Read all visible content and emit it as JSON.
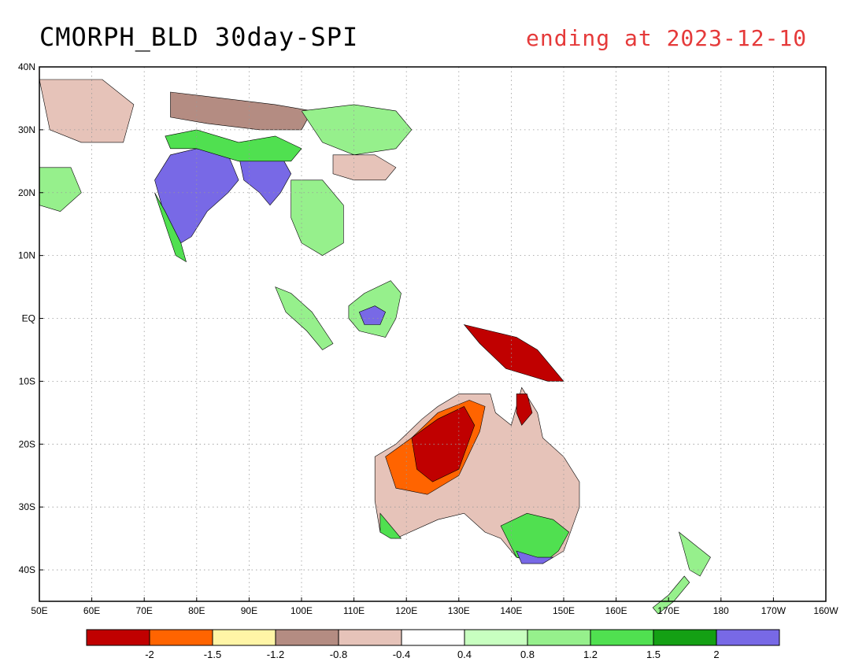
{
  "title": "CMORPH_BLD 30day-SPI",
  "subtitle": "ending at 2023-12-10",
  "map": {
    "lon_range": [
      50,
      200
    ],
    "lat_range": [
      -45,
      40
    ],
    "lon_ticks": [
      {
        "lon": 50,
        "label": "50E"
      },
      {
        "lon": 60,
        "label": "60E"
      },
      {
        "lon": 70,
        "label": "70E"
      },
      {
        "lon": 80,
        "label": "80E"
      },
      {
        "lon": 90,
        "label": "90E"
      },
      {
        "lon": 100,
        "label": "100E"
      },
      {
        "lon": 110,
        "label": "110E"
      },
      {
        "lon": 120,
        "label": "120E"
      },
      {
        "lon": 130,
        "label": "130E"
      },
      {
        "lon": 140,
        "label": "140E"
      },
      {
        "lon": 150,
        "label": "150E"
      },
      {
        "lon": 160,
        "label": "160E"
      },
      {
        "lon": 170,
        "label": "170E"
      },
      {
        "lon": 180,
        "label": "180"
      },
      {
        "lon": 190,
        "label": "170W"
      },
      {
        "lon": 200,
        "label": "160W"
      }
    ],
    "lat_ticks": [
      {
        "lat": 40,
        "label": "40N"
      },
      {
        "lat": 30,
        "label": "30N"
      },
      {
        "lat": 20,
        "label": "20N"
      },
      {
        "lat": 10,
        "label": "10N"
      },
      {
        "lat": 0,
        "label": "EQ"
      },
      {
        "lat": -10,
        "label": "10S"
      },
      {
        "lat": -20,
        "label": "20S"
      },
      {
        "lat": -30,
        "label": "30S"
      },
      {
        "lat": -40,
        "label": "40S"
      }
    ],
    "grid": true
  },
  "colorbar": {
    "colors": [
      "#c00000",
      "#ff6400",
      "#fff5a6",
      "#b48c82",
      "#e6c3b9",
      "#ffffff",
      "#c8ffc0",
      "#96f08c",
      "#50e050",
      "#14a014",
      "#7869e6"
    ],
    "labels": [
      "-2",
      "-1.5",
      "-1.2",
      "-0.8",
      "-0.4",
      "0.4",
      "0.8",
      "1.2",
      "1.5",
      "2"
    ]
  },
  "regions": [
    {
      "name": "india",
      "color": "#7869e6",
      "poly": [
        [
          72,
          22
        ],
        [
          75,
          26
        ],
        [
          80,
          27
        ],
        [
          86,
          26
        ],
        [
          88,
          22
        ],
        [
          86,
          20
        ],
        [
          82,
          17
        ],
        [
          79,
          13
        ],
        [
          77,
          12
        ],
        [
          74,
          16
        ],
        [
          73,
          19
        ]
      ]
    },
    {
      "name": "india-west-green",
      "color": "#50e050",
      "poly": [
        [
          72,
          20
        ],
        [
          74,
          15
        ],
        [
          76,
          10
        ],
        [
          78,
          9
        ],
        [
          77,
          12
        ],
        [
          74,
          17
        ]
      ]
    },
    {
      "name": "bangladesh-burma",
      "color": "#7869e6",
      "poly": [
        [
          88,
          26
        ],
        [
          92,
          27
        ],
        [
          96,
          26
        ],
        [
          98,
          23
        ],
        [
          96,
          20
        ],
        [
          94,
          18
        ],
        [
          92,
          20
        ],
        [
          89,
          22
        ]
      ]
    },
    {
      "name": "himalaya-green",
      "color": "#50e050",
      "poly": [
        [
          74,
          29
        ],
        [
          80,
          30
        ],
        [
          88,
          28
        ],
        [
          95,
          29
        ],
        [
          100,
          27
        ],
        [
          98,
          25
        ],
        [
          88,
          25
        ],
        [
          80,
          27
        ],
        [
          75,
          27
        ]
      ]
    },
    {
      "name": "tibet-brown",
      "color": "#b48c82",
      "poly": [
        [
          75,
          36
        ],
        [
          85,
          35
        ],
        [
          95,
          34
        ],
        [
          102,
          33
        ],
        [
          100,
          30
        ],
        [
          92,
          30
        ],
        [
          82,
          31
        ],
        [
          75,
          32
        ]
      ]
    },
    {
      "name": "china-green",
      "color": "#96f08c",
      "poly": [
        [
          100,
          33
        ],
        [
          110,
          34
        ],
        [
          118,
          33
        ],
        [
          121,
          30
        ],
        [
          118,
          27
        ],
        [
          110,
          26
        ],
        [
          104,
          28
        ]
      ]
    },
    {
      "name": "china-south-brown",
      "color": "#e6c3b9",
      "poly": [
        [
          106,
          26
        ],
        [
          114,
          26
        ],
        [
          118,
          24
        ],
        [
          116,
          22
        ],
        [
          110,
          22
        ],
        [
          106,
          23
        ]
      ]
    },
    {
      "name": "se-asia-green",
      "color": "#96f08c",
      "poly": [
        [
          98,
          22
        ],
        [
          104,
          22
        ],
        [
          108,
          18
        ],
        [
          108,
          12
        ],
        [
          104,
          10
        ],
        [
          100,
          12
        ],
        [
          98,
          16
        ]
      ]
    },
    {
      "name": "arabia-brown",
      "color": "#e6c3b9",
      "poly": [
        [
          50,
          38
        ],
        [
          62,
          38
        ],
        [
          68,
          34
        ],
        [
          66,
          28
        ],
        [
          58,
          28
        ],
        [
          52,
          30
        ]
      ]
    },
    {
      "name": "arabia-green",
      "color": "#96f08c",
      "poly": [
        [
          50,
          24
        ],
        [
          56,
          24
        ],
        [
          58,
          20
        ],
        [
          54,
          17
        ],
        [
          50,
          18
        ]
      ]
    },
    {
      "name": "borneo-green",
      "color": "#96f08c",
      "poly": [
        [
          109,
          2
        ],
        [
          112,
          4
        ],
        [
          117,
          6
        ],
        [
          119,
          4
        ],
        [
          118,
          0
        ],
        [
          116,
          -3
        ],
        [
          111,
          -2
        ],
        [
          109,
          0
        ]
      ]
    },
    {
      "name": "borneo-purple",
      "color": "#7869e6",
      "poly": [
        [
          111,
          1
        ],
        [
          114,
          2
        ],
        [
          116,
          1
        ],
        [
          115,
          -1
        ],
        [
          112,
          -1
        ]
      ]
    },
    {
      "name": "sumatra-green",
      "color": "#96f08c",
      "poly": [
        [
          95,
          5
        ],
        [
          98,
          4
        ],
        [
          102,
          1
        ],
        [
          106,
          -4
        ],
        [
          104,
          -5
        ],
        [
          101,
          -2
        ],
        [
          97,
          1
        ]
      ]
    },
    {
      "name": "new-guinea-red",
      "color": "#c00000",
      "poly": [
        [
          131,
          -1
        ],
        [
          136,
          -2
        ],
        [
          141,
          -3
        ],
        [
          145,
          -5
        ],
        [
          148,
          -8
        ],
        [
          150,
          -10
        ],
        [
          147,
          -10
        ],
        [
          143,
          -9
        ],
        [
          139,
          -8
        ],
        [
          134,
          -4
        ]
      ]
    },
    {
      "name": "australia-base",
      "color": "#e6c3b9",
      "poly": [
        [
          114,
          -22
        ],
        [
          118,
          -20
        ],
        [
          123,
          -16
        ],
        [
          126,
          -14
        ],
        [
          130,
          -12
        ],
        [
          136,
          -12
        ],
        [
          137,
          -15
        ],
        [
          140,
          -17
        ],
        [
          142,
          -11
        ],
        [
          145,
          -15
        ],
        [
          146,
          -19
        ],
        [
          150,
          -22
        ],
        [
          153,
          -26
        ],
        [
          153,
          -30
        ],
        [
          150,
          -37
        ],
        [
          146,
          -39
        ],
        [
          141,
          -38
        ],
        [
          138,
          -35
        ],
        [
          135,
          -34
        ],
        [
          131,
          -31
        ],
        [
          126,
          -32
        ],
        [
          118,
          -35
        ],
        [
          115,
          -34
        ],
        [
          114,
          -29
        ]
      ]
    },
    {
      "name": "australia-north-orange",
      "color": "#ff6400",
      "poly": [
        [
          116,
          -22
        ],
        [
          121,
          -19
        ],
        [
          126,
          -15
        ],
        [
          132,
          -13
        ],
        [
          135,
          -14
        ],
        [
          134,
          -18
        ],
        [
          130,
          -25
        ],
        [
          124,
          -28
        ],
        [
          118,
          -27
        ]
      ]
    },
    {
      "name": "australia-north-red",
      "color": "#c00000",
      "poly": [
        [
          121,
          -19
        ],
        [
          126,
          -16
        ],
        [
          131,
          -14
        ],
        [
          133,
          -17
        ],
        [
          130,
          -24
        ],
        [
          125,
          -26
        ],
        [
          122,
          -24
        ]
      ]
    },
    {
      "name": "cape-york-red",
      "color": "#c00000",
      "poly": [
        [
          141,
          -12
        ],
        [
          143,
          -12
        ],
        [
          144,
          -15
        ],
        [
          142,
          -17
        ],
        [
          141,
          -15
        ]
      ]
    },
    {
      "name": "australia-se-green",
      "color": "#50e050",
      "poly": [
        [
          138,
          -33
        ],
        [
          143,
          -31
        ],
        [
          148,
          -32
        ],
        [
          151,
          -34
        ],
        [
          149,
          -37
        ],
        [
          146,
          -39
        ],
        [
          141,
          -38
        ]
      ]
    },
    {
      "name": "australia-south-purple",
      "color": "#7869e6",
      "poly": [
        [
          141,
          -37
        ],
        [
          145,
          -38
        ],
        [
          148,
          -38
        ],
        [
          146,
          -39
        ],
        [
          142,
          -39
        ]
      ]
    },
    {
      "name": "australia-sw-green",
      "color": "#50e050",
      "poly": [
        [
          115,
          -31
        ],
        [
          117,
          -33
        ],
        [
          119,
          -35
        ],
        [
          117,
          -35
        ],
        [
          115,
          -34
        ]
      ]
    },
    {
      "name": "nz-green",
      "color": "#96f08c",
      "poly": [
        [
          172,
          -34
        ],
        [
          175,
          -36
        ],
        [
          178,
          -38
        ],
        [
          176,
          -41
        ],
        [
          174,
          -40
        ],
        [
          173,
          -37
        ]
      ]
    },
    {
      "name": "nz-south",
      "color": "#96f08c",
      "poly": [
        [
          167,
          -46
        ],
        [
          170,
          -44
        ],
        [
          173,
          -41
        ],
        [
          174,
          -42
        ],
        [
          171,
          -45
        ],
        [
          168,
          -47
        ]
      ]
    }
  ]
}
